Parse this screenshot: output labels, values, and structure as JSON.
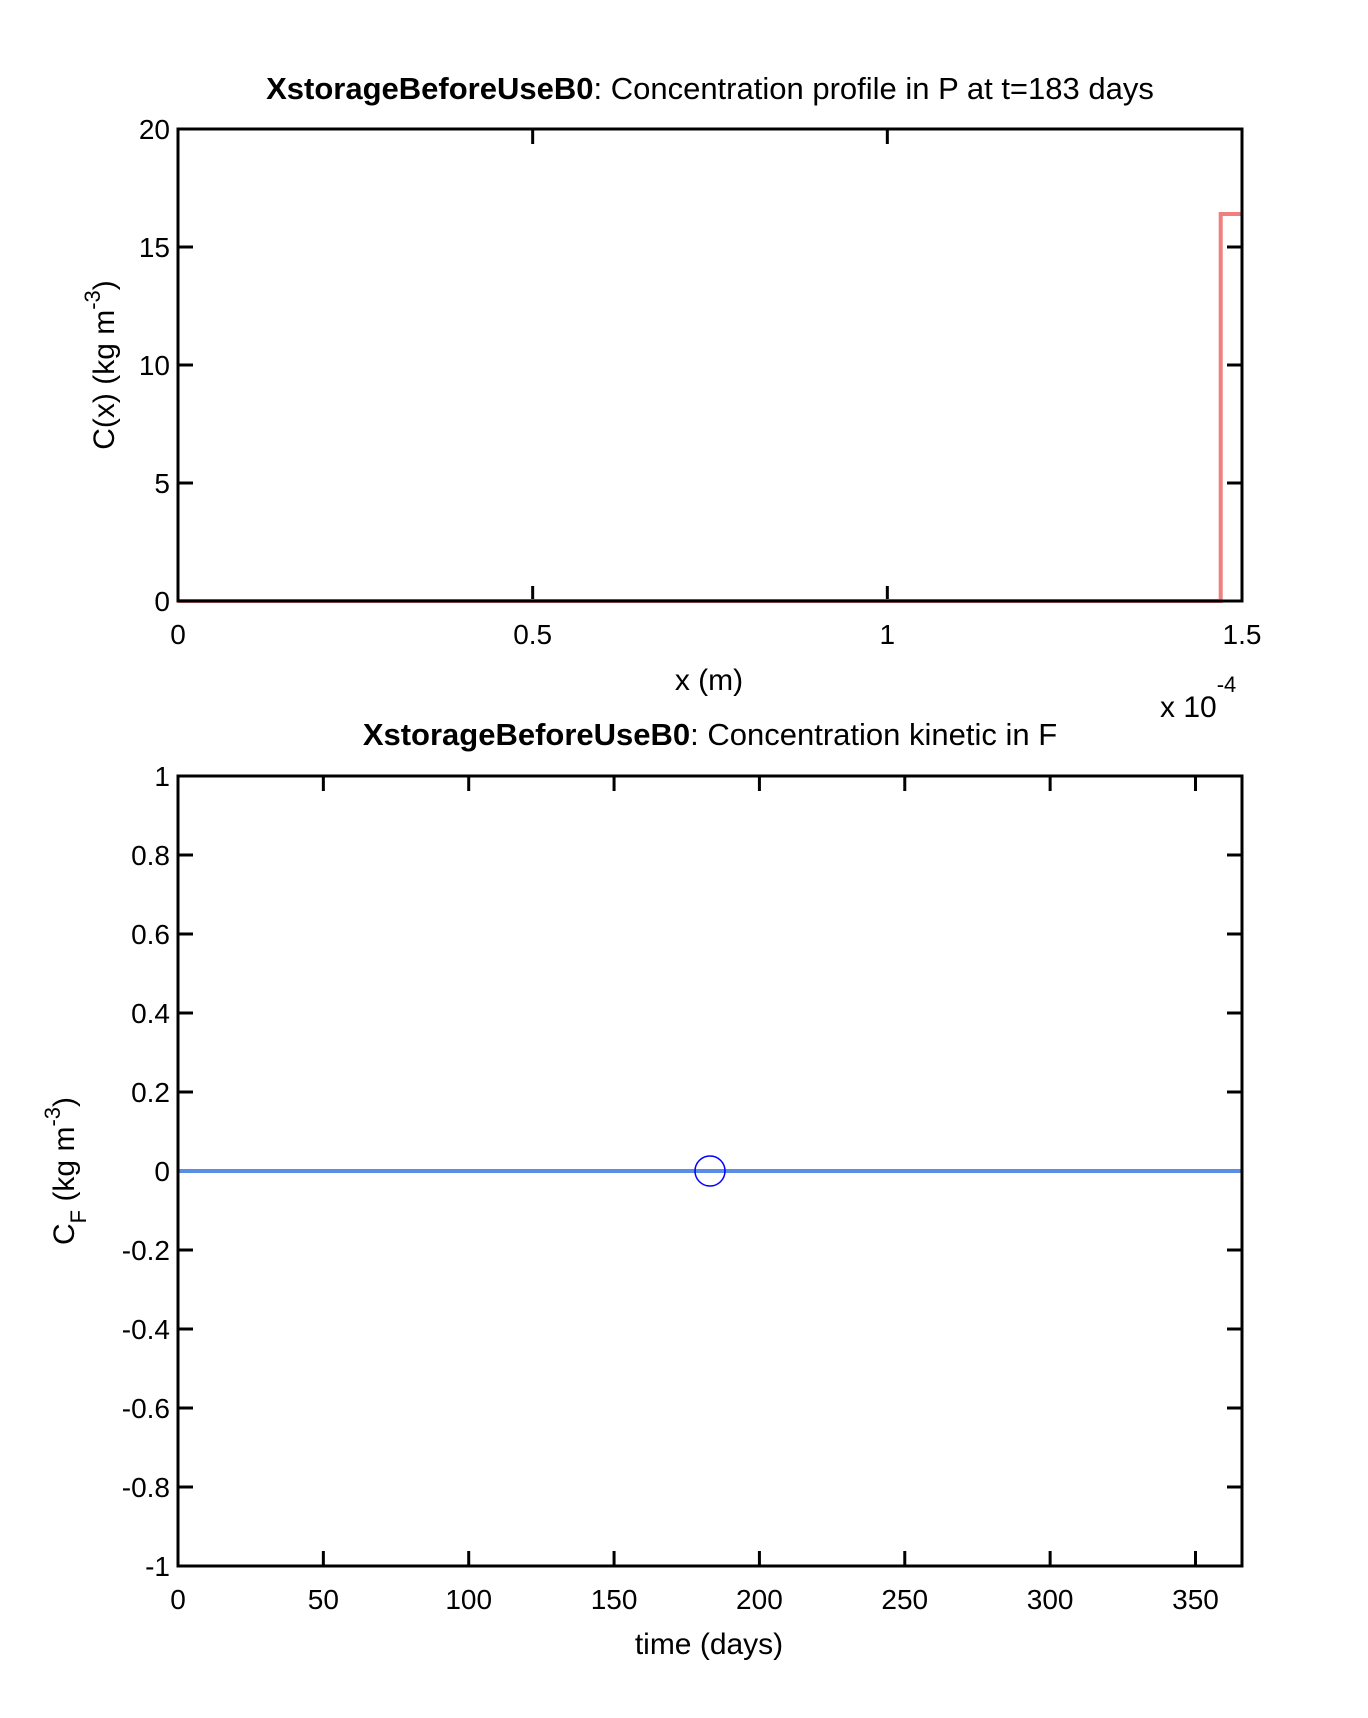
{
  "chart_data": [
    {
      "type": "line",
      "title_bold": "XstorageBeforeUseB0",
      "title_rest": ": Concentration profile in P at t=183 days",
      "xlabel": "x (m)",
      "ylabel_main": "C(x) (kg m",
      "ylabel_sup": "-3",
      "ylabel_close": ")",
      "x_multiplier_text": "x 10",
      "x_multiplier_exp": "-4",
      "xlim": [
        0,
        1.5
      ],
      "ylim": [
        0,
        20
      ],
      "xticks": [
        0,
        0.5,
        1,
        1.5
      ],
      "xtick_labels": [
        "0",
        "0.5",
        "1",
        "1.5"
      ],
      "yticks": [
        0,
        5,
        10,
        15,
        20
      ],
      "ytick_labels": [
        "0",
        "5",
        "10",
        "15",
        "20"
      ],
      "grid": false,
      "series": [
        {
          "color": "#f08080",
          "x": [
            0,
            1.47,
            1.47,
            1.5
          ],
          "y": [
            0,
            0,
            16.4,
            16.4
          ]
        },
        {
          "color": "#8b0000",
          "x": [
            1.03,
            1.47
          ],
          "y": [
            0,
            0
          ]
        }
      ]
    },
    {
      "type": "line",
      "title_bold": "XstorageBeforeUseB0",
      "title_rest": ": Concentration kinetic in F",
      "xlabel": "time (days)",
      "ylabel_main": "C",
      "ylabel_sub": "F",
      "ylabel_rest": " (kg m",
      "ylabel_sup": "-3",
      "ylabel_close": ")",
      "xlim": [
        0,
        366
      ],
      "ylim": [
        -1,
        1
      ],
      "xticks": [
        0,
        50,
        100,
        150,
        200,
        250,
        300,
        350
      ],
      "xtick_labels": [
        "0",
        "50",
        "100",
        "150",
        "200",
        "250",
        "300",
        "350"
      ],
      "yticks": [
        -1,
        -0.8,
        -0.6,
        -0.4,
        -0.2,
        0,
        0.2,
        0.4,
        0.6,
        0.8,
        1
      ],
      "ytick_labels": [
        "-1",
        "-0.8",
        "-0.6",
        "-0.4",
        "-0.2",
        "0",
        "0.2",
        "0.4",
        "0.6",
        "0.8",
        "1"
      ],
      "grid": false,
      "series": [
        {
          "color": "#5a8de6",
          "x": [
            0,
            366
          ],
          "y": [
            0,
            0
          ]
        }
      ],
      "marker": {
        "x": 183,
        "y": 0,
        "color": "#0000ff",
        "shape": "circle"
      }
    }
  ]
}
